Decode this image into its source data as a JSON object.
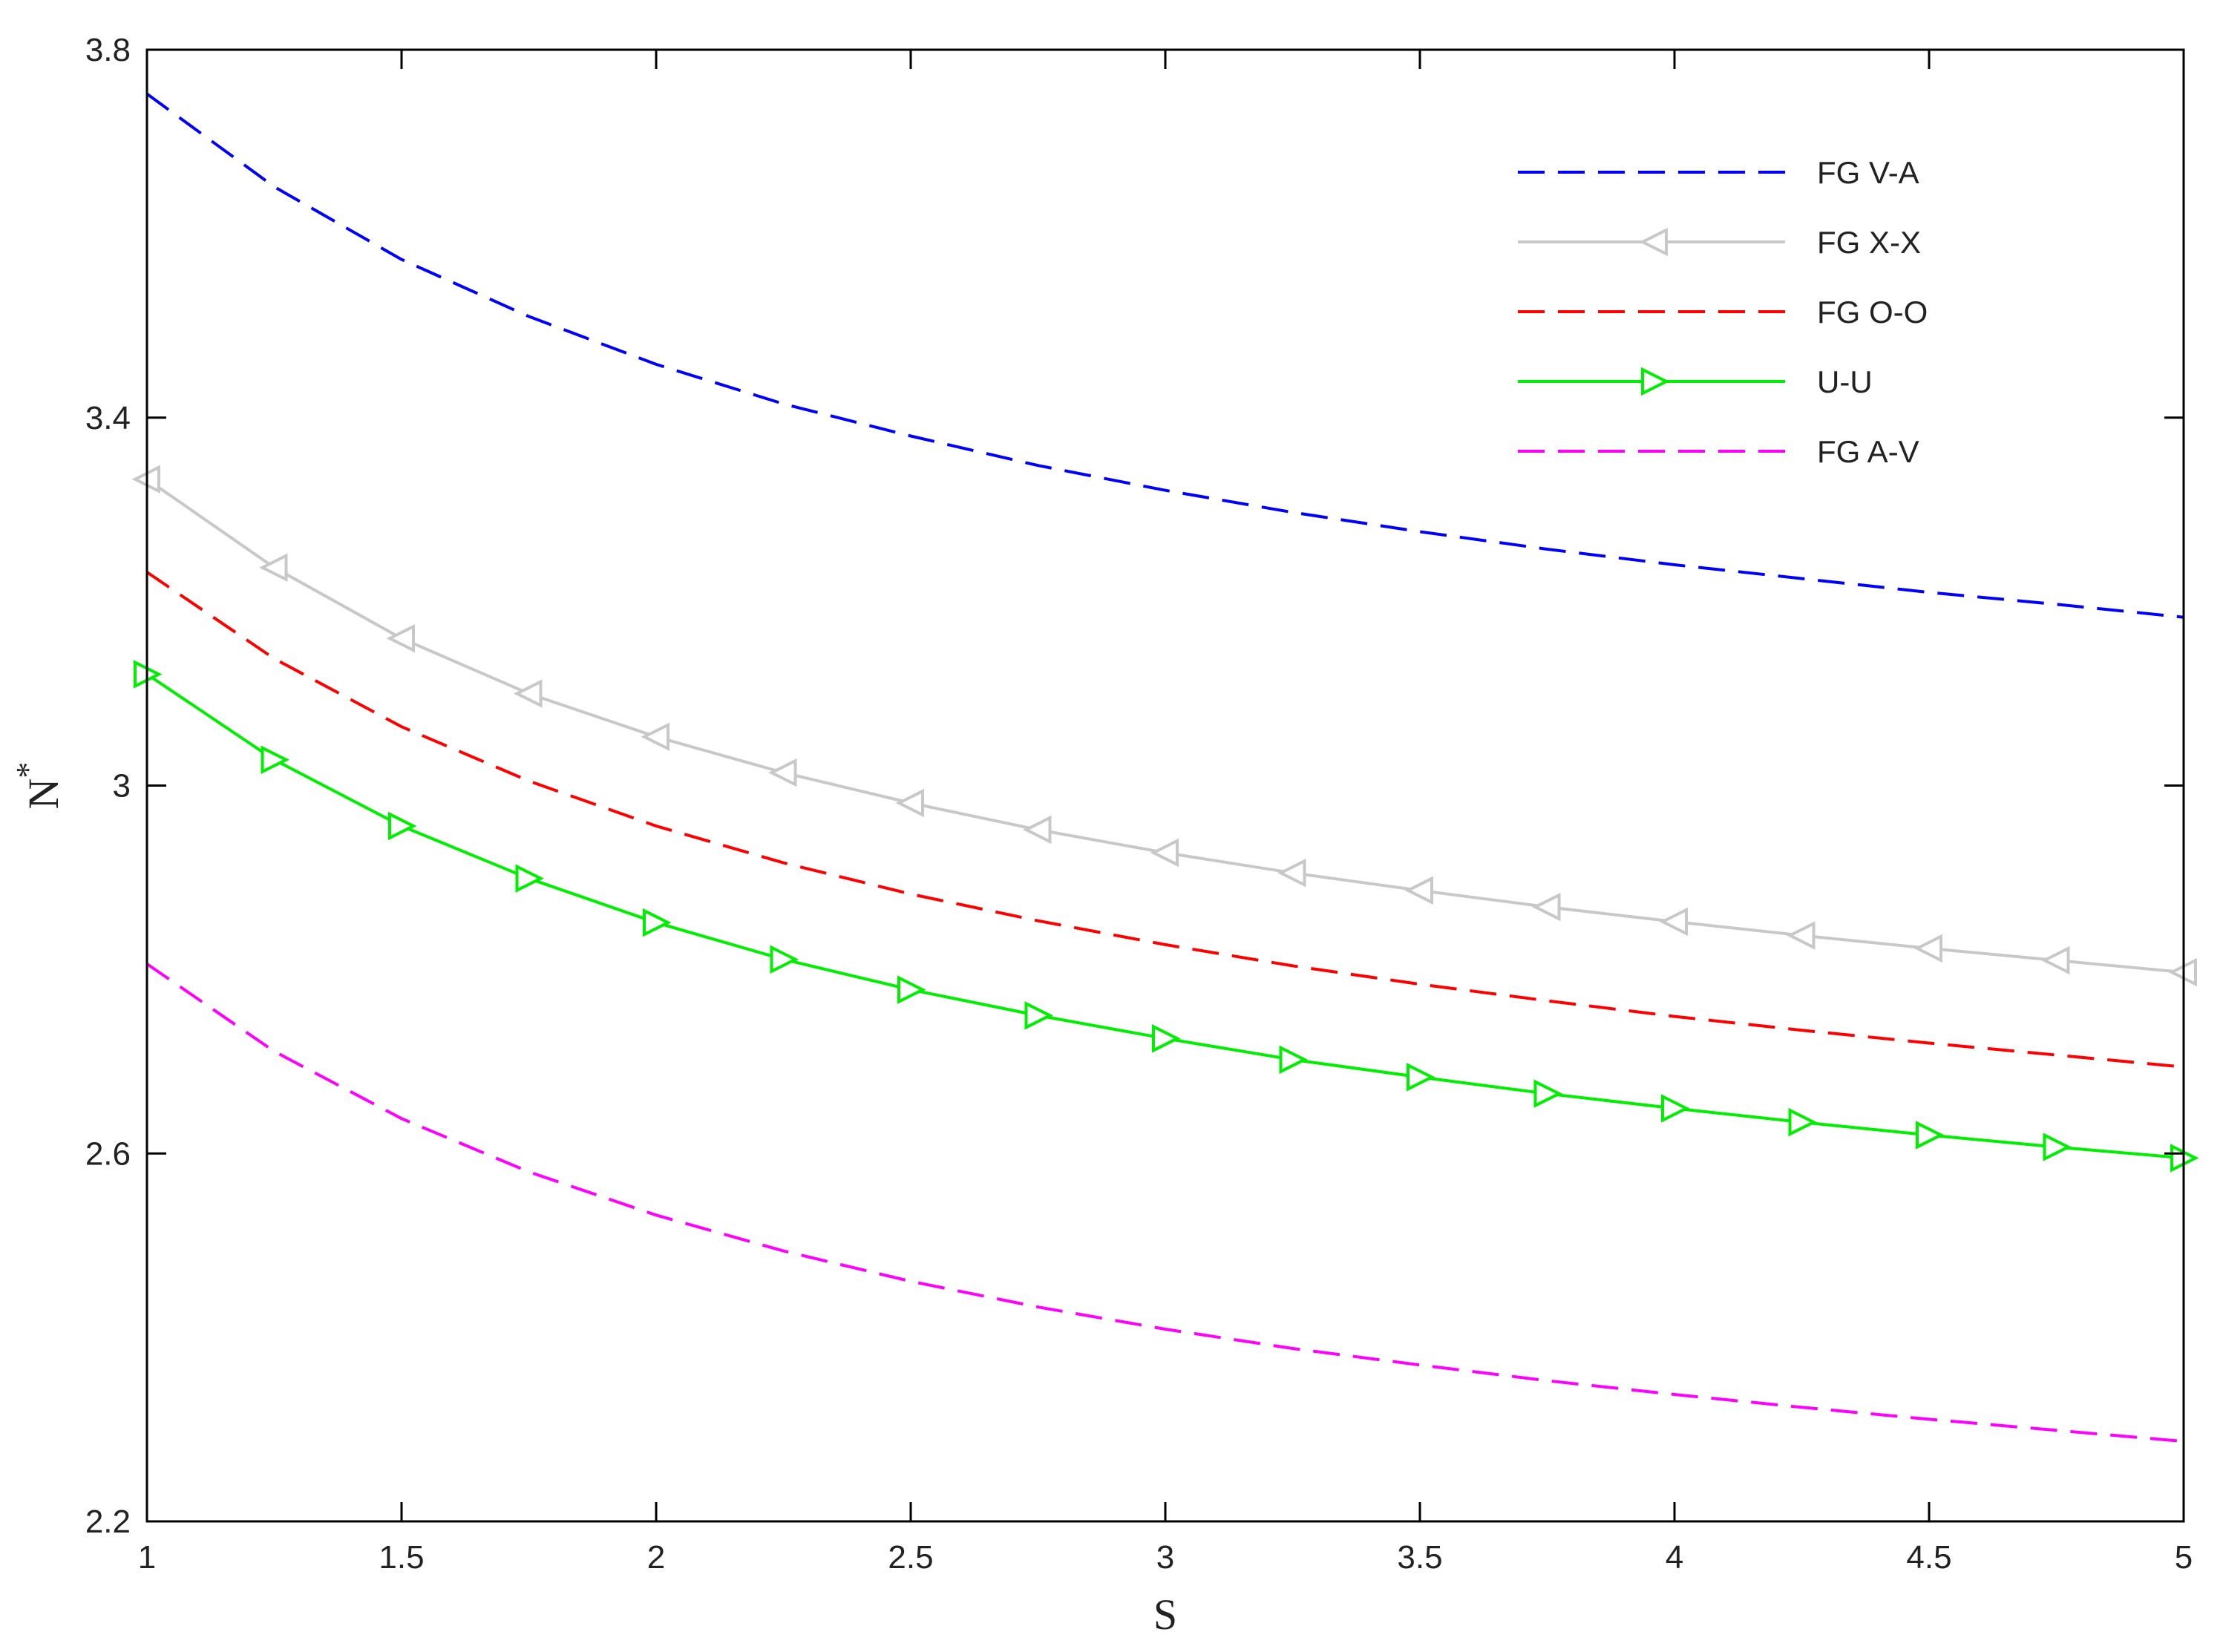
{
  "chart_data": {
    "type": "line",
    "title": "",
    "xlabel": "S",
    "ylabel_main": "N",
    "ylabel_sup": "*",
    "xlim": [
      1,
      5
    ],
    "ylim": [
      2.2,
      3.8
    ],
    "x_ticks": [
      1,
      1.5,
      2,
      2.5,
      3,
      3.5,
      4,
      4.5,
      5
    ],
    "x_tick_labels": [
      "1",
      "1.5",
      "2",
      "2.5",
      "3",
      "3.5",
      "4",
      "4.5",
      "5"
    ],
    "y_ticks": [
      2.2,
      2.6,
      3.0,
      3.4,
      3.8
    ],
    "y_tick_labels": [
      "2.2",
      "2.6",
      "3",
      "3.4",
      "3.8"
    ],
    "grid": false,
    "legend_position": "top-right",
    "x": [
      1,
      1.25,
      1.5,
      1.75,
      2,
      2.25,
      2.5,
      2.75,
      3,
      3.25,
      3.5,
      3.75,
      4,
      4.25,
      4.5,
      4.75,
      5
    ],
    "series": [
      {
        "name": "FG V-A",
        "color": "#0000ff",
        "line_style": "dashed",
        "marker": "none",
        "values": [
          3.752,
          3.651,
          3.572,
          3.51,
          3.458,
          3.415,
          3.38,
          3.348,
          3.321,
          3.297,
          3.276,
          3.257,
          3.24,
          3.225,
          3.21,
          3.197,
          3.183
        ]
      },
      {
        "name": "FG X-X",
        "color": "#c8c8c8",
        "line_style": "solid",
        "marker": "triangle-left",
        "values": [
          3.333,
          3.237,
          3.16,
          3.1,
          3.053,
          3.014,
          2.981,
          2.952,
          2.927,
          2.905,
          2.886,
          2.868,
          2.852,
          2.837,
          2.823,
          2.81,
          2.797
        ]
      },
      {
        "name": "FG O-O",
        "color": "#ff0000",
        "line_style": "dashed",
        "marker": "none",
        "values": [
          3.232,
          3.138,
          3.064,
          3.005,
          2.956,
          2.916,
          2.882,
          2.853,
          2.827,
          2.804,
          2.784,
          2.766,
          2.749,
          2.734,
          2.72,
          2.707,
          2.694
        ]
      },
      {
        "name": "U-U",
        "color": "#00ee00",
        "line_style": "solid",
        "marker": "triangle-right",
        "values": [
          3.121,
          3.028,
          2.956,
          2.899,
          2.851,
          2.811,
          2.778,
          2.75,
          2.725,
          2.702,
          2.683,
          2.665,
          2.649,
          2.634,
          2.62,
          2.607,
          2.595
        ]
      },
      {
        "name": "FG A-V",
        "color": "#ff00ff",
        "line_style": "dashed",
        "marker": "none",
        "values": [
          2.806,
          2.711,
          2.638,
          2.58,
          2.533,
          2.494,
          2.461,
          2.433,
          2.409,
          2.388,
          2.37,
          2.353,
          2.338,
          2.324,
          2.311,
          2.299,
          2.287
        ]
      }
    ]
  }
}
